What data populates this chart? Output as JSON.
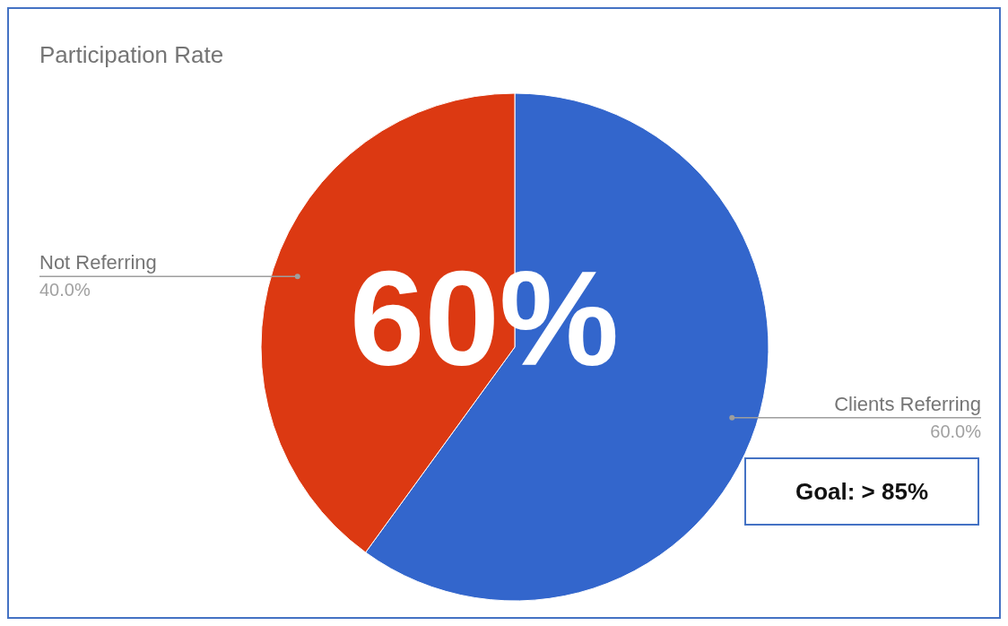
{
  "chart_data": {
    "type": "pie",
    "title": "Participation Rate",
    "categories": [
      "Clients Referring",
      "Not Referring"
    ],
    "values": [
      60,
      40
    ],
    "colors": [
      "#3366cc",
      "#dc3912"
    ],
    "value_labels": [
      "60.0%",
      "40.0%"
    ],
    "annotations": [
      "60%",
      "Goal: > 85%"
    ]
  }
}
